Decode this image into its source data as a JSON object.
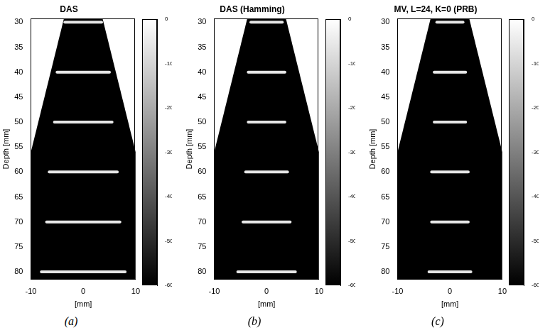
{
  "chart_data": [
    {
      "type": "scatter",
      "title": "DAS",
      "panel_label": "(a)",
      "xlabel": "[mm]",
      "ylabel": "Depth [mm]",
      "xlim": [
        -10,
        10
      ],
      "xticks": [
        -10,
        0,
        10
      ],
      "ylim": [
        29.3,
        81.5
      ],
      "yticks": [
        30,
        35,
        40,
        45,
        50,
        55,
        60,
        65,
        70,
        75,
        80
      ],
      "sector": [
        [
          -3.7,
          29.3
        ],
        [
          3.7,
          29.3
        ],
        [
          10,
          56
        ],
        [
          10,
          81.5
        ],
        [
          -10,
          81.5
        ],
        [
          -10,
          56
        ]
      ],
      "targets": [
        {
          "depth": 30,
          "x": [
            -3.5,
            3.5
          ]
        },
        {
          "depth": 40,
          "x": [
            -5,
            5
          ]
        },
        {
          "depth": 50,
          "x": [
            -5.5,
            5.5
          ]
        },
        {
          "depth": 60,
          "x": [
            -6.5,
            6.5
          ]
        },
        {
          "depth": 70,
          "x": [
            -7,
            7
          ]
        },
        {
          "depth": 80,
          "x": [
            -8,
            8
          ]
        }
      ],
      "color": "#e6e6e6",
      "colorbar": {
        "range": [
          -60,
          0
        ],
        "ticks": [
          -60,
          -50,
          -40,
          -30,
          -20,
          -10,
          0
        ]
      }
    },
    {
      "type": "scatter",
      "title": "DAS (Hamming)",
      "panel_label": "(b)",
      "xlabel": "[mm]",
      "ylabel": "Depth [mm]",
      "xlim": [
        -10,
        10
      ],
      "xticks": [
        -10,
        0,
        10
      ],
      "ylim": [
        29.3,
        81.5
      ],
      "yticks": [
        30,
        35,
        40,
        45,
        50,
        55,
        60,
        65,
        70,
        75,
        80
      ],
      "sector": [
        [
          -3.7,
          29.3
        ],
        [
          3.7,
          29.3
        ],
        [
          10,
          56
        ],
        [
          10,
          81.5
        ],
        [
          -10,
          81.5
        ],
        [
          -10,
          56
        ]
      ],
      "targets": [
        {
          "depth": 30,
          "x": [
            -3,
            3
          ]
        },
        {
          "depth": 40,
          "x": [
            -3.5,
            3.5
          ]
        },
        {
          "depth": 50,
          "x": [
            -3.5,
            3.5
          ]
        },
        {
          "depth": 60,
          "x": [
            -4,
            4
          ]
        },
        {
          "depth": 70,
          "x": [
            -4.5,
            4.5
          ]
        },
        {
          "depth": 80,
          "x": [
            -5.5,
            5.5
          ]
        }
      ],
      "color": "#e6e6e6",
      "colorbar": {
        "range": [
          -60,
          0
        ],
        "ticks": [
          -60,
          -50,
          -40,
          -30,
          -20,
          -10,
          0
        ]
      }
    },
    {
      "type": "scatter",
      "title": "MV, L=24, K=0 (PRB)",
      "panel_label": "(c)",
      "xlabel": "[mm]",
      "ylabel": "Depth [mm]",
      "xlim": [
        -10,
        10
      ],
      "xticks": [
        -10,
        0,
        10
      ],
      "ylim": [
        29.3,
        81.5
      ],
      "yticks": [
        30,
        35,
        40,
        45,
        50,
        55,
        60,
        65,
        70,
        75,
        80
      ],
      "sector": [
        [
          -3.7,
          29.3
        ],
        [
          3.7,
          29.3
        ],
        [
          10,
          56
        ],
        [
          10,
          81.5
        ],
        [
          -10,
          81.5
        ],
        [
          -10,
          56
        ]
      ],
      "targets": [
        {
          "depth": 30,
          "x": [
            -2.5,
            2.5
          ]
        },
        {
          "depth": 40,
          "x": [
            -3,
            3
          ]
        },
        {
          "depth": 50,
          "x": [
            -3,
            3
          ]
        },
        {
          "depth": 60,
          "x": [
            -3.5,
            3.5
          ]
        },
        {
          "depth": 70,
          "x": [
            -3.5,
            3.5
          ]
        },
        {
          "depth": 80,
          "x": [
            -4,
            4
          ]
        }
      ],
      "color": "#e6e6e6",
      "colorbar": {
        "range": [
          -60,
          0
        ],
        "ticks": [
          -60,
          -50,
          -40,
          -30,
          -20,
          -10,
          0
        ]
      }
    }
  ]
}
